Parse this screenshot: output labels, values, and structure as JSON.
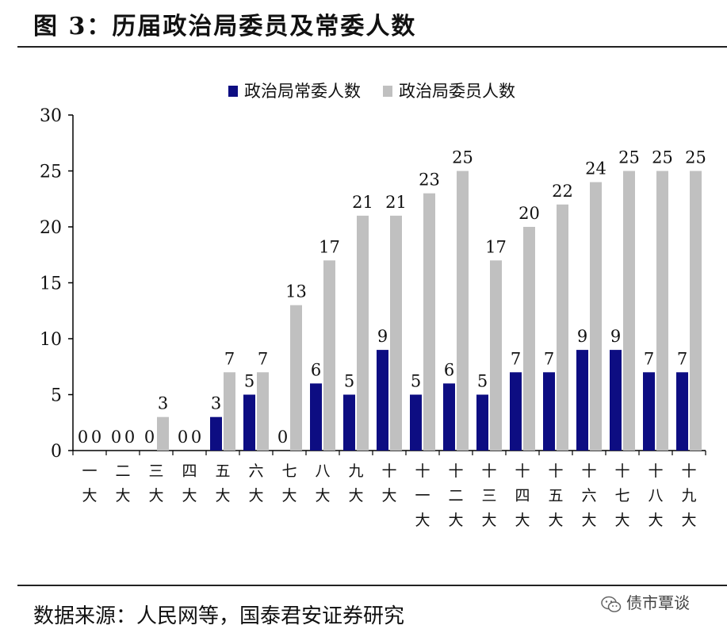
{
  "title": "图 3：历届政治局委员及常委人数",
  "source": "数据来源：人民网等，国泰君安证券研究",
  "watermark": "债市覃谈",
  "chart_data": {
    "type": "bar",
    "categories": [
      "一大",
      "二大",
      "三大",
      "四大",
      "五大",
      "六大",
      "七大",
      "八大",
      "九大",
      "十大",
      "十一大",
      "十二大",
      "十三大",
      "十四大",
      "十五大",
      "十六大",
      "十七大",
      "十八大",
      "十九大"
    ],
    "series": [
      {
        "name": "政治局常委人数",
        "color": "#0d0d82",
        "values": [
          0,
          0,
          0,
          0,
          3,
          5,
          0,
          6,
          5,
          9,
          5,
          6,
          5,
          7,
          7,
          9,
          9,
          7,
          7
        ]
      },
      {
        "name": "政治局委员人数",
        "color": "#c0c0c0",
        "values": [
          0,
          0,
          3,
          0,
          7,
          7,
          13,
          17,
          21,
          21,
          23,
          25,
          17,
          20,
          22,
          24,
          25,
          25,
          25
        ]
      }
    ],
    "ylim": [
      0,
      30
    ],
    "yticks": [
      0,
      5,
      10,
      15,
      20,
      25,
      30
    ],
    "legend": "top",
    "grid": false
  }
}
